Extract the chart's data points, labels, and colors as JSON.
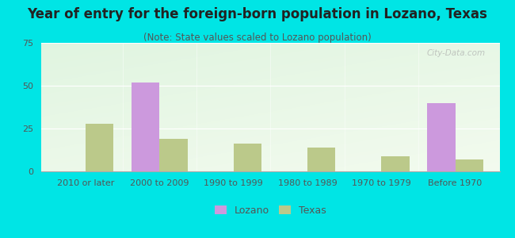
{
  "title": "Year of entry for the foreign-born population in Lozano, Texas",
  "subtitle": "(Note: State values scaled to Lozano population)",
  "categories": [
    "2010 or later",
    "2000 to 2009",
    "1990 to 1999",
    "1980 to 1989",
    "1970 to 1979",
    "Before 1970"
  ],
  "lozano_values": [
    0,
    52,
    0,
    0,
    0,
    40
  ],
  "texas_values": [
    28,
    19,
    16,
    14,
    9,
    7
  ],
  "lozano_color": "#cc99dd",
  "texas_color": "#bbc98a",
  "background_outer": "#00e5e5",
  "ylim": [
    0,
    75
  ],
  "yticks": [
    0,
    25,
    50,
    75
  ],
  "bar_width": 0.38,
  "title_fontsize": 12,
  "subtitle_fontsize": 8.5,
  "tick_fontsize": 8,
  "legend_fontsize": 9,
  "watermark": "City-Data.com"
}
